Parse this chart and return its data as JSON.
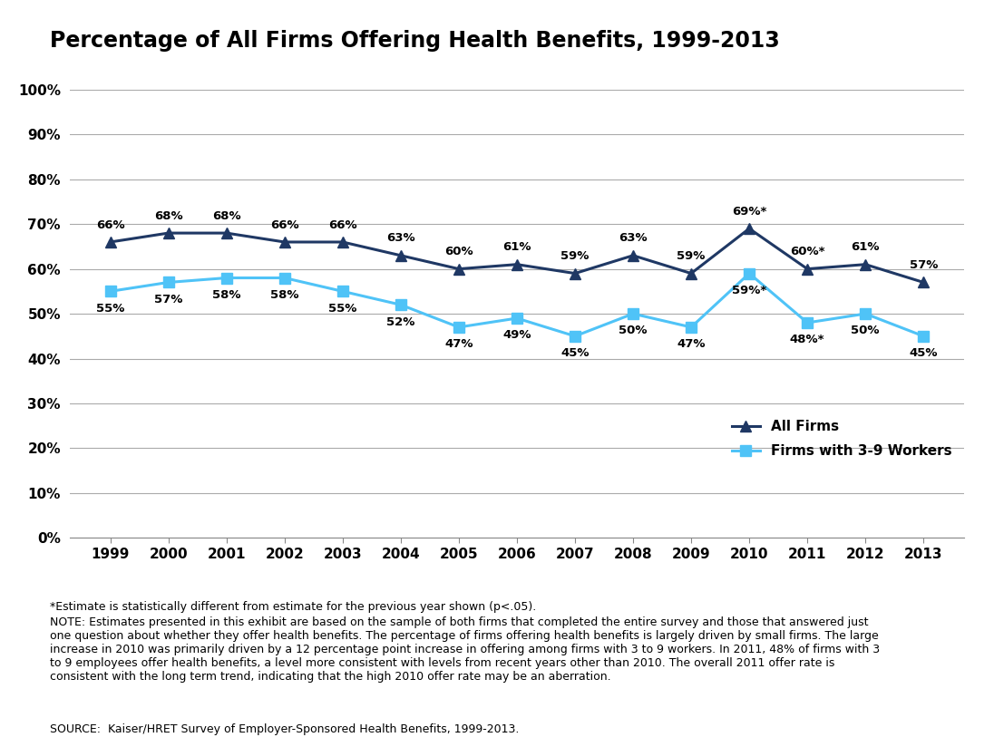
{
  "title": "Percentage of All Firms Offering Health Benefits, 1999-2013",
  "years": [
    1999,
    2000,
    2001,
    2002,
    2003,
    2004,
    2005,
    2006,
    2007,
    2008,
    2009,
    2010,
    2011,
    2012,
    2013
  ],
  "all_firms": [
    66,
    68,
    68,
    66,
    66,
    63,
    60,
    61,
    59,
    63,
    59,
    69,
    60,
    61,
    57
  ],
  "small_firms": [
    55,
    57,
    58,
    58,
    55,
    52,
    47,
    49,
    45,
    50,
    47,
    59,
    48,
    50,
    45
  ],
  "all_firms_labels": [
    "66%",
    "68%",
    "68%",
    "66%",
    "66%",
    "63%",
    "60%",
    "61%",
    "59%",
    "63%",
    "59%",
    "69%*",
    "60%*",
    "61%",
    "57%"
  ],
  "small_firms_labels": [
    "55%",
    "57%",
    "58%",
    "58%",
    "55%",
    "52%",
    "47%",
    "49%",
    "45%",
    "50%",
    "47%",
    "59%*",
    "48%*",
    "50%",
    "45%"
  ],
  "all_firms_color": "#1F3864",
  "small_firms_color": "#4FC3F7",
  "background_color": "#FFFFFF",
  "ylim": [
    0,
    100
  ],
  "ytick_labels": [
    "0%",
    "10%",
    "20%",
    "30%",
    "40%",
    "50%",
    "60%",
    "70%",
    "80%",
    "90%",
    "100%"
  ],
  "ytick_values": [
    0,
    10,
    20,
    30,
    40,
    50,
    60,
    70,
    80,
    90,
    100
  ],
  "legend_all_firms": "All Firms",
  "legend_small_firms": "Firms with 3-9 Workers",
  "footnote1": "*Estimate is statistically different from estimate for the previous year shown (p<.05).",
  "footnote2": "NOTE: Estimates presented in this exhibit are based on the sample of both firms that completed the entire survey and those that answered just\none question about whether they offer health benefits. The percentage of firms offering health benefits is largely driven by small firms. The large\nincrease in 2010 was primarily driven by a 12 percentage point increase in offering among firms with 3 to 9 workers. In 2011, 48% of firms with 3\nto 9 employees offer health benefits, a level more consistent with levels from recent years other than 2010. The overall 2011 offer rate is\nconsistent with the long term trend, indicating that the high 2010 offer rate may be an aberration.",
  "source": "SOURCE:  Kaiser/HRET Survey of Employer-Sponsored Health Benefits, 1999-2013."
}
